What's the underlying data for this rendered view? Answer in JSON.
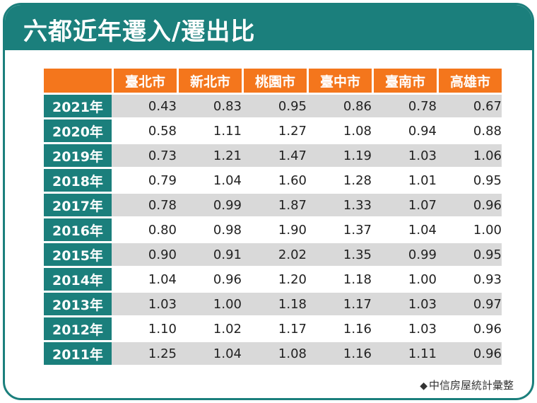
{
  "title": "六都近年遷入/遷出比",
  "columns": [
    "臺北市",
    "新北市",
    "桃園市",
    "臺中市",
    "臺南市",
    "高雄市"
  ],
  "rows": [
    {
      "year": "2021年",
      "values": [
        "0.43",
        "0.83",
        "0.95",
        "0.86",
        "0.78",
        "0.67"
      ]
    },
    {
      "year": "2020年",
      "values": [
        "0.58",
        "1.11",
        "1.27",
        "1.08",
        "0.94",
        "0.88"
      ]
    },
    {
      "year": "2019年",
      "values": [
        "0.73",
        "1.21",
        "1.47",
        "1.19",
        "1.03",
        "1.06"
      ]
    },
    {
      "year": "2018年",
      "values": [
        "0.79",
        "1.04",
        "1.60",
        "1.28",
        "1.01",
        "0.95"
      ]
    },
    {
      "year": "2017年",
      "values": [
        "0.78",
        "0.99",
        "1.87",
        "1.33",
        "1.07",
        "0.96"
      ]
    },
    {
      "year": "2016年",
      "values": [
        "0.80",
        "0.98",
        "1.90",
        "1.37",
        "1.04",
        "1.00"
      ]
    },
    {
      "year": "2015年",
      "values": [
        "0.90",
        "0.91",
        "2.02",
        "1.35",
        "0.99",
        "0.95"
      ]
    },
    {
      "year": "2014年",
      "values": [
        "1.04",
        "0.96",
        "1.20",
        "1.18",
        "1.00",
        "0.93"
      ]
    },
    {
      "year": "2013年",
      "values": [
        "1.03",
        "1.00",
        "1.18",
        "1.17",
        "1.03",
        "0.97"
      ]
    },
    {
      "year": "2012年",
      "values": [
        "1.10",
        "1.02",
        "1.17",
        "1.16",
        "1.03",
        "0.96"
      ]
    },
    {
      "year": "2011年",
      "values": [
        "1.25",
        "1.04",
        "1.08",
        "1.16",
        "1.11",
        "0.96"
      ]
    }
  ],
  "source": "中信房屋統計彙整",
  "icons": {
    "source_marker": "diamond-icon"
  },
  "colors": {
    "primary": "#1b7f7c",
    "header": "#f4761c",
    "row_shade": "#d9d9d9"
  }
}
